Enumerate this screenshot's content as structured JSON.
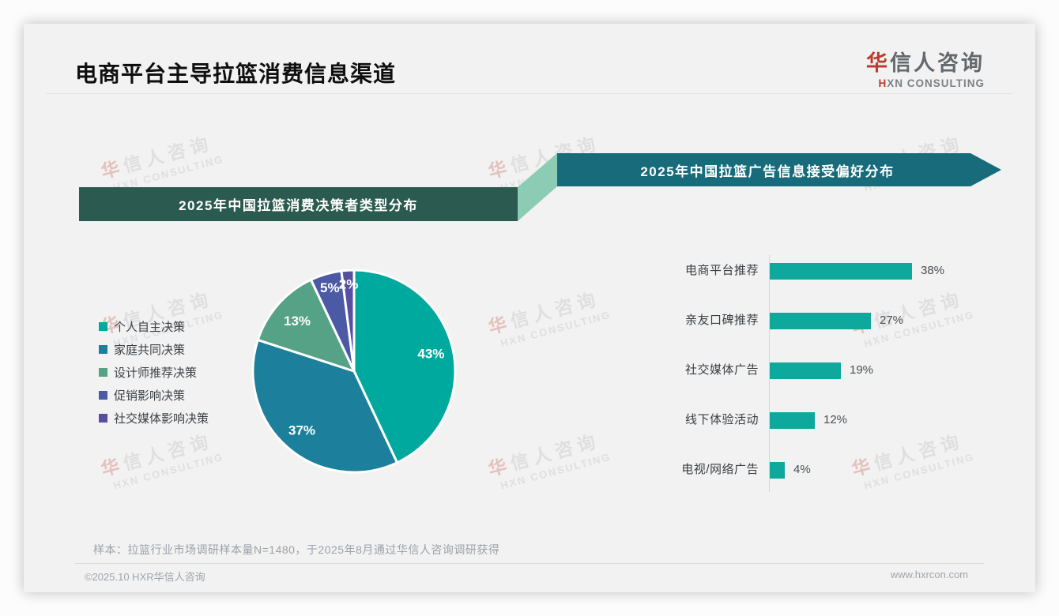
{
  "header": {
    "title": "电商平台主导拉篮消费信息渠道",
    "logo": {
      "cn_first": "华",
      "cn_rest": "信人咨询",
      "en_first": "H",
      "en_rest": "XN CONSULTING"
    }
  },
  "watermark": {
    "cn_first": "华",
    "cn_rest": "信人咨询",
    "en": "HXN CONSULTING"
  },
  "colors": {
    "left_banner": "#2b5b50",
    "right_banner": "#176b7b",
    "connector": "#8ccbb4",
    "bar": "#0fa89c",
    "pie": [
      "#00a99d",
      "#1c7f9b",
      "#55a287",
      "#4c5aa5",
      "#57509f"
    ]
  },
  "chart_data": [
    {
      "type": "pie",
      "title": "2025年中国拉篮消费决策者类型分布",
      "labels": [
        "个人自主决策",
        "家庭共同决策",
        "设计师推荐决策",
        "促销影响决策",
        "社交媒体影响决策"
      ],
      "values": [
        43,
        37,
        13,
        5,
        2
      ],
      "unit": "%",
      "colors": [
        "#00a99d",
        "#1c7f9b",
        "#55a287",
        "#4c5aa5",
        "#57509f"
      ],
      "data_labels": [
        "43%",
        "37%",
        "13%",
        "5%",
        "2%"
      ],
      "legend_position": "left",
      "start_angle_deg": 0,
      "direction": "clockwise"
    },
    {
      "type": "bar",
      "orientation": "horizontal",
      "title": "2025年中国拉篮广告信息接受偏好分布",
      "categories": [
        "电商平台推荐",
        "亲友口碑推荐",
        "社交媒体广告",
        "线下体验活动",
        "电视/网络广告"
      ],
      "values": [
        38,
        27,
        19,
        12,
        4
      ],
      "unit": "%",
      "value_labels": [
        "38%",
        "27%",
        "19%",
        "12%",
        "4%"
      ],
      "xlim": [
        0,
        40
      ],
      "grid": false,
      "bar_color": "#0fa89c"
    }
  ],
  "footnote": "样本：拉篮行业市场调研样本量N=1480，于2025年8月通过华信人咨询调研获得",
  "footer": {
    "left": "©2025.10 HXR华信人咨询",
    "right": "www.hxrcon.com"
  }
}
